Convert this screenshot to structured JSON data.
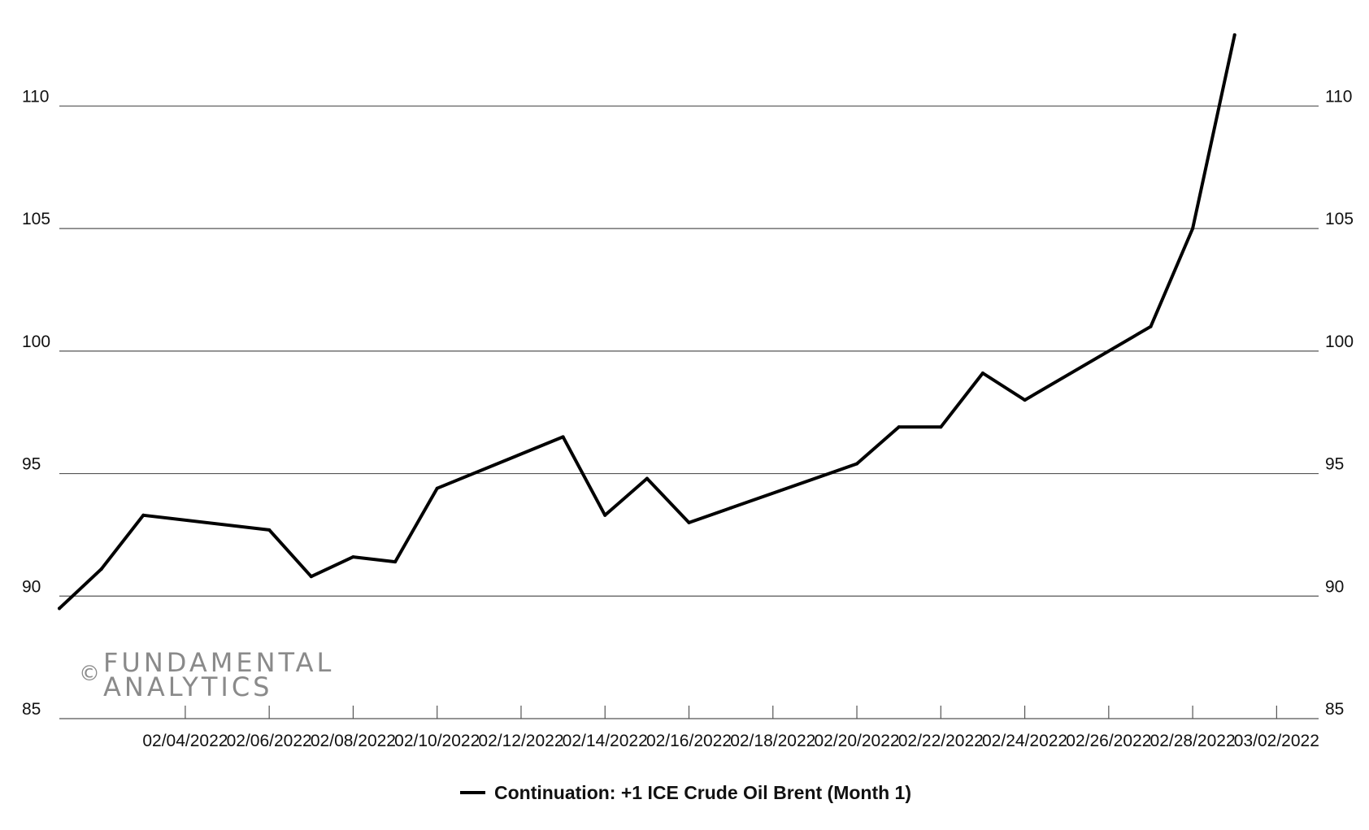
{
  "chart_data": {
    "type": "line",
    "title": "",
    "xlabel": "",
    "ylabel": "",
    "xlim": [
      "2022-02-01",
      "2022-03-03"
    ],
    "ylim": [
      85,
      113
    ],
    "y_ticks": [
      85,
      90,
      95,
      100,
      105,
      110
    ],
    "y_axis_sides": "left-and-right",
    "x_ticks": [
      {
        "date": "2022-02-04",
        "label": "02/04/2022"
      },
      {
        "date": "2022-02-06",
        "label": "02/06/2022"
      },
      {
        "date": "2022-02-08",
        "label": "02/08/2022"
      },
      {
        "date": "2022-02-10",
        "label": "02/10/2022"
      },
      {
        "date": "2022-02-12",
        "label": "02/12/2022"
      },
      {
        "date": "2022-02-14",
        "label": "02/14/2022"
      },
      {
        "date": "2022-02-16",
        "label": "02/16/2022"
      },
      {
        "date": "2022-02-18",
        "label": "02/18/2022"
      },
      {
        "date": "2022-02-20",
        "label": "02/20/2022"
      },
      {
        "date": "2022-02-22",
        "label": "02/22/2022"
      },
      {
        "date": "2022-02-24",
        "label": "02/24/2022"
      },
      {
        "date": "2022-02-26",
        "label": "02/26/2022"
      },
      {
        "date": "2022-02-28",
        "label": "02/28/2022"
      },
      {
        "date": "2022-03-02",
        "label": "03/02/2022"
      }
    ],
    "grid": "horizontal",
    "legend": "bottom-center",
    "series": [
      {
        "name": "Continuation: +1 ICE Crude Oil Brent (Month 1)",
        "color": "#000000",
        "points": [
          {
            "x": "2022-02-01",
            "y": 89.5
          },
          {
            "x": "2022-02-02",
            "y": 91.1
          },
          {
            "x": "2022-02-03",
            "y": 93.3
          },
          {
            "x": "2022-02-06",
            "y": 92.7
          },
          {
            "x": "2022-02-07",
            "y": 90.8
          },
          {
            "x": "2022-02-08",
            "y": 91.6
          },
          {
            "x": "2022-02-09",
            "y": 91.4
          },
          {
            "x": "2022-02-10",
            "y": 94.4
          },
          {
            "x": "2022-02-13",
            "y": 96.5
          },
          {
            "x": "2022-02-14",
            "y": 93.3
          },
          {
            "x": "2022-02-15",
            "y": 94.8
          },
          {
            "x": "2022-02-16",
            "y": 93.0
          },
          {
            "x": "2022-02-17",
            "y": 93.6
          },
          {
            "x": "2022-02-20",
            "y": 95.4
          },
          {
            "x": "2022-02-21",
            "y": 96.9
          },
          {
            "x": "2022-02-22",
            "y": 96.9
          },
          {
            "x": "2022-02-23",
            "y": 99.1
          },
          {
            "x": "2022-02-24",
            "y": 98.0
          },
          {
            "x": "2022-02-27",
            "y": 101.0
          },
          {
            "x": "2022-02-28",
            "y": 105.0
          },
          {
            "x": "2022-03-01",
            "y": 112.9
          }
        ]
      }
    ]
  },
  "watermark": {
    "copyright_symbol": "©",
    "line1": "FUNDAMENTAL",
    "line2": "ANALYTICS"
  }
}
